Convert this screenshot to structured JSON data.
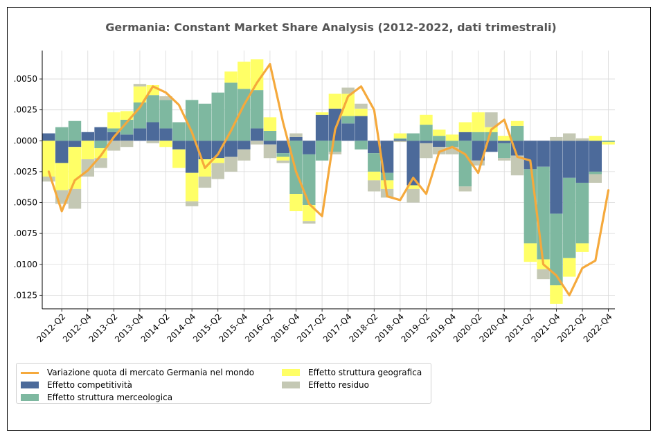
{
  "chart_data": {
    "type": "bar",
    "subtype": "stacked bar with line overlay",
    "title": "Germania: Constant Market Share Analysis (2012-2022, dati trimestrali)",
    "xlabel": "",
    "ylabel": "",
    "ylim": [
      -0.0136,
      0.0073
    ],
    "grid": true,
    "legend_position": "lower-left, below plot",
    "x_tick_labels": [
      "2012-Q2",
      "2012-Q4",
      "2013-Q2",
      "2013-Q4",
      "2014-Q2",
      "2014-Q4",
      "2015-Q2",
      "2015-Q4",
      "2016-Q2",
      "2016-Q4",
      "2017-Q2",
      "2017-Q4",
      "2018-Q2",
      "2018-Q4",
      "2019-Q2",
      "2019-Q4",
      "2020-Q2",
      "2020-Q4",
      "2021-Q2",
      "2021-Q4",
      "2022-Q2",
      "2022-Q4"
    ],
    "y_tick_labels": [
      ".0050",
      ".0025",
      ".0000",
      ".0025",
      ".0050",
      ".0075",
      ".0100",
      ".0125"
    ],
    "y_tick_values": [
      0.005,
      0.0025,
      0.0,
      -0.0025,
      -0.005,
      -0.0075,
      -0.01,
      -0.0125
    ],
    "categories": [
      "2012-Q1",
      "2012-Q2",
      "2012-Q3",
      "2012-Q4",
      "2013-Q1",
      "2013-Q2",
      "2013-Q3",
      "2013-Q4",
      "2014-Q1",
      "2014-Q2",
      "2014-Q3",
      "2014-Q4",
      "2015-Q1",
      "2015-Q2",
      "2015-Q3",
      "2015-Q4",
      "2016-Q1",
      "2016-Q2",
      "2016-Q3",
      "2016-Q4",
      "2017-Q1",
      "2017-Q2",
      "2017-Q3",
      "2017-Q4",
      "2018-Q1",
      "2018-Q2",
      "2018-Q3",
      "2018-Q4",
      "2019-Q1",
      "2019-Q2",
      "2019-Q3",
      "2019-Q4",
      "2020-Q1",
      "2020-Q2",
      "2020-Q3",
      "2020-Q4",
      "2021-Q1",
      "2021-Q2",
      "2021-Q3",
      "2021-Q4",
      "2022-Q1",
      "2022-Q2",
      "2022-Q3",
      "2022-Q4"
    ],
    "series": [
      {
        "name": "Effetto competitività",
        "color": "#4c6a9a",
        "values": [
          0.0006,
          -0.0018,
          -0.0005,
          0.0007,
          0.0011,
          0.0007,
          0.0005,
          0.001,
          0.0015,
          0.001,
          -0.0007,
          -0.0026,
          -0.0015,
          -0.0014,
          -0.0013,
          -0.0007,
          0.001,
          -0.0003,
          -0.001,
          0.0003,
          -0.0011,
          0.0021,
          0.0026,
          0.0014,
          0.002,
          -0.001,
          -0.0026,
          0.0001,
          -0.0036,
          -0.0002,
          -0.0005,
          0.0,
          0.0007,
          -0.0016,
          -0.0009,
          -0.0002,
          -0.0012,
          -0.0023,
          -0.0021,
          -0.0059,
          -0.003,
          -0.0034,
          -0.0025,
          0.0
        ]
      },
      {
        "name": "Effetto struttura merceologica",
        "color": "#7eb8a0",
        "values": [
          0.0,
          0.0011,
          0.0016,
          0.0,
          -0.0006,
          0.0003,
          0.0012,
          0.0021,
          0.0022,
          0.0023,
          0.0015,
          0.0033,
          0.003,
          0.0039,
          0.0047,
          0.0042,
          0.0031,
          0.0008,
          -0.0003,
          -0.0043,
          -0.0041,
          -0.0016,
          -0.0009,
          0.0006,
          -0.0007,
          -0.0015,
          -0.0006,
          0.0001,
          0.0006,
          0.0013,
          0.0004,
          -0.0005,
          -0.0037,
          0.0007,
          0.0007,
          -0.0012,
          0.0012,
          -0.006,
          -0.0075,
          -0.0058,
          -0.0065,
          -0.0049,
          -0.0002,
          -0.0001
        ]
      },
      {
        "name": "Effetto struttura geografica",
        "color": "#ffff66",
        "values": [
          -0.0029,
          -0.0022,
          -0.0034,
          -0.0015,
          -0.0008,
          0.0013,
          0.0007,
          0.0013,
          0.0008,
          -0.0005,
          -0.0015,
          -0.0023,
          -0.0014,
          -0.0004,
          0.0009,
          0.0022,
          0.0025,
          0.0011,
          -0.0003,
          -0.0014,
          -0.0013,
          0.0002,
          0.0012,
          0.0018,
          0.0006,
          -0.0007,
          -0.0007,
          0.0004,
          -0.0003,
          0.0008,
          0.0005,
          0.0005,
          0.0008,
          0.0016,
          0.0004,
          0.0004,
          0.0004,
          -0.0015,
          -0.0008,
          -0.0015,
          -0.0015,
          -0.0007,
          0.0004,
          -0.0002
        ]
      },
      {
        "name": "Effetto residuo",
        "color": "#c4c8b4",
        "values": [
          -0.0004,
          -0.0011,
          -0.0016,
          -0.0014,
          -0.0008,
          -0.0008,
          -0.0005,
          0.0002,
          -0.0002,
          0.0003,
          0.0,
          -0.0004,
          -0.0009,
          -0.0013,
          -0.0012,
          -0.0009,
          -0.0003,
          -0.0011,
          -0.0002,
          0.0003,
          -0.0002,
          0.0,
          -0.0002,
          0.0005,
          0.0004,
          -0.0009,
          -0.0007,
          -0.0001,
          -0.0011,
          -0.0012,
          -0.0006,
          -0.0006,
          -0.0004,
          -0.0004,
          0.0012,
          -0.0002,
          -0.0016,
          0.0,
          -0.0008,
          0.0003,
          0.0006,
          0.0002,
          -0.0007,
          0.0
        ]
      },
      {
        "name": "Variazione quota di mercato Germania nel mondo",
        "color": "#f5a93c",
        "type": "line",
        "values": [
          -0.0025,
          -0.0057,
          -0.0032,
          -0.0024,
          -0.0012,
          0.0003,
          0.0015,
          0.0027,
          0.0044,
          0.0039,
          0.0029,
          0.0007,
          -0.0022,
          -0.0011,
          0.0008,
          0.0029,
          0.0047,
          0.0062,
          0.0015,
          -0.0025,
          -0.0051,
          -0.0061,
          0.0009,
          0.0036,
          0.0044,
          0.0025,
          -0.0045,
          -0.0048,
          -0.003,
          -0.0043,
          -0.0009,
          -0.0005,
          -0.0011,
          -0.0026,
          0.0009,
          0.0017,
          -0.0013,
          -0.0016,
          -0.01,
          -0.0109,
          -0.0125,
          -0.0103,
          -0.0097,
          -0.004
        ]
      }
    ],
    "legend": [
      "Variazione quota di mercato Germania nel mondo",
      "Effetto competitività",
      "Effetto struttura merceologica",
      "Effetto struttura geografica",
      "Effetto residuo"
    ]
  }
}
